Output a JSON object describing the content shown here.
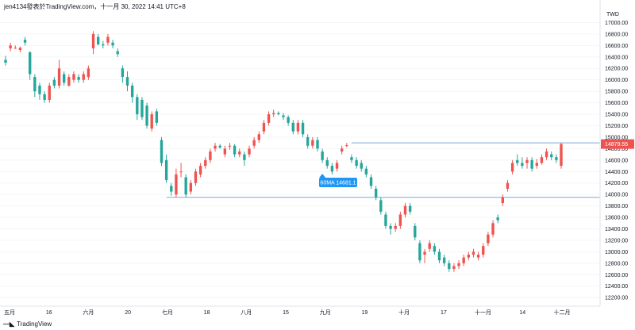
{
  "header": {
    "title": "jen4134發表於TradingView.com，十一月 30, 2022 14:41 UTC+8"
  },
  "footer": {
    "brand": "TradingView",
    "logo_icon": "tradingview-logo-icon"
  },
  "colors": {
    "up": "#ef5350",
    "down": "#26a69a",
    "hline": "#7fa9d6",
    "label_bg": "#2196f3",
    "last_price_bg": "#ef5350"
  },
  "chart_data": {
    "type": "candlestick",
    "currency": "TWD",
    "ylim": [
      12050,
      17200
    ],
    "y_ticks": [
      12200,
      12400,
      12600,
      12800,
      13000,
      13200,
      13400,
      13600,
      13800,
      14000,
      14200,
      14400,
      14600,
      14800,
      15000,
      15200,
      15400,
      15600,
      15800,
      16000,
      16200,
      16400,
      16600,
      16800,
      17000
    ],
    "x_ticks": [
      "五月",
      "16",
      "六月",
      "20",
      "七月",
      "18",
      "八月",
      "15",
      "九月",
      "19",
      "十月",
      "17",
      "十一月",
      "14",
      "十二月"
    ],
    "horizontal_lines": [
      14900,
      13950
    ],
    "annotation": {
      "text": "60MA 14681.1",
      "value": 14681.1
    },
    "last_price": {
      "text": "14879.55",
      "value": 14879.55
    },
    "candles": [
      {
        "o": 16350,
        "h": 16420,
        "l": 16250,
        "c": 16300
      },
      {
        "o": 16550,
        "h": 16650,
        "l": 16500,
        "c": 16600
      },
      {
        "o": 16560,
        "h": 16600,
        "l": 16540,
        "c": 16560
      },
      {
        "o": 16520,
        "h": 16580,
        "l": 16480,
        "c": 16560
      },
      {
        "o": 16700,
        "h": 16750,
        "l": 16600,
        "c": 16650
      },
      {
        "o": 16480,
        "h": 16500,
        "l": 16000,
        "c": 16100
      },
      {
        "o": 16050,
        "h": 16100,
        "l": 15700,
        "c": 15800
      },
      {
        "o": 15900,
        "h": 15950,
        "l": 15650,
        "c": 15750
      },
      {
        "o": 15750,
        "h": 15800,
        "l": 15600,
        "c": 15650
      },
      {
        "o": 15650,
        "h": 15950,
        "l": 15600,
        "c": 15900
      },
      {
        "o": 16000,
        "h": 16050,
        "l": 15850,
        "c": 15900
      },
      {
        "o": 15900,
        "h": 16350,
        "l": 15850,
        "c": 16200
      },
      {
        "o": 16100,
        "h": 16150,
        "l": 15900,
        "c": 15950
      },
      {
        "o": 15900,
        "h": 16100,
        "l": 15880,
        "c": 16050
      },
      {
        "o": 16000,
        "h": 16150,
        "l": 15950,
        "c": 16100
      },
      {
        "o": 16050,
        "h": 16100,
        "l": 15950,
        "c": 16000
      },
      {
        "o": 16000,
        "h": 16150,
        "l": 15950,
        "c": 16100
      },
      {
        "o": 16050,
        "h": 16250,
        "l": 16000,
        "c": 16200
      },
      {
        "o": 16550,
        "h": 16850,
        "l": 16450,
        "c": 16800
      },
      {
        "o": 16750,
        "h": 16800,
        "l": 16600,
        "c": 16620
      },
      {
        "o": 16620,
        "h": 16680,
        "l": 16550,
        "c": 16600
      },
      {
        "o": 16650,
        "h": 16800,
        "l": 16600,
        "c": 16750
      },
      {
        "o": 16650,
        "h": 16700,
        "l": 16550,
        "c": 16600
      },
      {
        "o": 16500,
        "h": 16550,
        "l": 16400,
        "c": 16450
      },
      {
        "o": 16200,
        "h": 16250,
        "l": 15950,
        "c": 16050
      },
      {
        "o": 16050,
        "h": 16150,
        "l": 15800,
        "c": 15900
      },
      {
        "o": 15900,
        "h": 15950,
        "l": 15600,
        "c": 15700
      },
      {
        "o": 15700,
        "h": 15750,
        "l": 15300,
        "c": 15400
      },
      {
        "o": 15650,
        "h": 15700,
        "l": 15300,
        "c": 15350
      },
      {
        "o": 15550,
        "h": 15600,
        "l": 15150,
        "c": 15200
      },
      {
        "o": 15150,
        "h": 15450,
        "l": 15100,
        "c": 15400
      },
      {
        "o": 15450,
        "h": 15500,
        "l": 15200,
        "c": 15250
      },
      {
        "o": 14950,
        "h": 15000,
        "l": 14500,
        "c": 14550
      },
      {
        "o": 14600,
        "h": 14700,
        "l": 14200,
        "c": 14250
      },
      {
        "o": 14150,
        "h": 14200,
        "l": 13980,
        "c": 14050
      },
      {
        "o": 14000,
        "h": 14450,
        "l": 13950,
        "c": 14350
      },
      {
        "o": 14400,
        "h": 14550,
        "l": 14300,
        "c": 14400
      },
      {
        "o": 14300,
        "h": 14350,
        "l": 13950,
        "c": 14000
      },
      {
        "o": 14050,
        "h": 14250,
        "l": 14000,
        "c": 14200
      },
      {
        "o": 14200,
        "h": 14450,
        "l": 14150,
        "c": 14400
      },
      {
        "o": 14350,
        "h": 14550,
        "l": 14300,
        "c": 14500
      },
      {
        "o": 14500,
        "h": 14650,
        "l": 14450,
        "c": 14600
      },
      {
        "o": 14600,
        "h": 14800,
        "l": 14550,
        "c": 14750
      },
      {
        "o": 14800,
        "h": 14900,
        "l": 14750,
        "c": 14850
      },
      {
        "o": 14850,
        "h": 14880,
        "l": 14800,
        "c": 14820
      },
      {
        "o": 14700,
        "h": 14850,
        "l": 14650,
        "c": 14800
      },
      {
        "o": 14850,
        "h": 14900,
        "l": 14780,
        "c": 14850
      },
      {
        "o": 14850,
        "h": 14880,
        "l": 14650,
        "c": 14700
      },
      {
        "o": 14700,
        "h": 14800,
        "l": 14650,
        "c": 14750
      },
      {
        "o": 14700,
        "h": 14750,
        "l": 14500,
        "c": 14600
      },
      {
        "o": 14700,
        "h": 14850,
        "l": 14650,
        "c": 14800
      },
      {
        "o": 14850,
        "h": 15000,
        "l": 14800,
        "c": 14950
      },
      {
        "o": 14950,
        "h": 15100,
        "l": 14900,
        "c": 15050
      },
      {
        "o": 15100,
        "h": 15300,
        "l": 15050,
        "c": 15250
      },
      {
        "o": 15250,
        "h": 15450,
        "l": 15200,
        "c": 15400
      },
      {
        "o": 15400,
        "h": 15480,
        "l": 15350,
        "c": 15420
      },
      {
        "o": 15420,
        "h": 15450,
        "l": 15380,
        "c": 15400
      },
      {
        "o": 15380,
        "h": 15420,
        "l": 15300,
        "c": 15350
      },
      {
        "o": 15350,
        "h": 15380,
        "l": 15200,
        "c": 15250
      },
      {
        "o": 15250,
        "h": 15300,
        "l": 15050,
        "c": 15100
      },
      {
        "o": 15100,
        "h": 15300,
        "l": 15050,
        "c": 15250
      },
      {
        "o": 15250,
        "h": 15300,
        "l": 15000,
        "c": 15050
      },
      {
        "o": 15000,
        "h": 15050,
        "l": 14800,
        "c": 14850
      },
      {
        "o": 14850,
        "h": 15000,
        "l": 14800,
        "c": 14950
      },
      {
        "o": 14950,
        "h": 15000,
        "l": 14750,
        "c": 14800
      },
      {
        "o": 14750,
        "h": 14800,
        "l": 14550,
        "c": 14600
      },
      {
        "o": 14600,
        "h": 14650,
        "l": 14450,
        "c": 14500
      },
      {
        "o": 14500,
        "h": 14550,
        "l": 14350,
        "c": 14400
      },
      {
        "o": 14450,
        "h": 14600,
        "l": 14400,
        "c": 14550
      },
      {
        "o": 14750,
        "h": 14850,
        "l": 14700,
        "c": 14800
      },
      {
        "o": 14850,
        "h": 14900,
        "l": 14820,
        "c": 14860
      },
      {
        "o": 14650,
        "h": 14700,
        "l": 14550,
        "c": 14600
      },
      {
        "o": 14600,
        "h": 14650,
        "l": 14450,
        "c": 14500
      },
      {
        "o": 14550,
        "h": 14600,
        "l": 14400,
        "c": 14450
      },
      {
        "o": 14450,
        "h": 14500,
        "l": 14300,
        "c": 14350
      },
      {
        "o": 14300,
        "h": 14350,
        "l": 14100,
        "c": 14150
      },
      {
        "o": 14100,
        "h": 14150,
        "l": 13900,
        "c": 13950
      },
      {
        "o": 13900,
        "h": 13950,
        "l": 13650,
        "c": 13700
      },
      {
        "o": 13650,
        "h": 13700,
        "l": 13400,
        "c": 13450
      },
      {
        "o": 13450,
        "h": 13500,
        "l": 13300,
        "c": 13400
      },
      {
        "o": 13400,
        "h": 13500,
        "l": 13350,
        "c": 13450
      },
      {
        "o": 13450,
        "h": 13700,
        "l": 13400,
        "c": 13650
      },
      {
        "o": 13650,
        "h": 13850,
        "l": 13600,
        "c": 13800
      },
      {
        "o": 13800,
        "h": 13850,
        "l": 13650,
        "c": 13700
      },
      {
        "o": 13450,
        "h": 13500,
        "l": 13200,
        "c": 13250
      },
      {
        "o": 13150,
        "h": 13200,
        "l": 12800,
        "c": 12850
      },
      {
        "o": 12950,
        "h": 13050,
        "l": 12800,
        "c": 13000
      },
      {
        "o": 13050,
        "h": 13200,
        "l": 13000,
        "c": 13150
      },
      {
        "o": 13100,
        "h": 13150,
        "l": 12950,
        "c": 13000
      },
      {
        "o": 13000,
        "h": 13050,
        "l": 12800,
        "c": 12850
      },
      {
        "o": 12900,
        "h": 12950,
        "l": 12750,
        "c": 12800
      },
      {
        "o": 12800,
        "h": 12850,
        "l": 12650,
        "c": 12700
      },
      {
        "o": 12700,
        "h": 12800,
        "l": 12650,
        "c": 12750
      },
      {
        "o": 12750,
        "h": 12850,
        "l": 12700,
        "c": 12800
      },
      {
        "o": 12800,
        "h": 12950,
        "l": 12750,
        "c": 12900
      },
      {
        "o": 12900,
        "h": 13000,
        "l": 12850,
        "c": 12950
      },
      {
        "o": 12950,
        "h": 13050,
        "l": 12900,
        "c": 13000
      },
      {
        "o": 12900,
        "h": 13000,
        "l": 12850,
        "c": 12950
      },
      {
        "o": 12950,
        "h": 13150,
        "l": 12900,
        "c": 13100
      },
      {
        "o": 13150,
        "h": 13350,
        "l": 13100,
        "c": 13300
      },
      {
        "o": 13300,
        "h": 13550,
        "l": 13250,
        "c": 13500
      },
      {
        "o": 13600,
        "h": 13650,
        "l": 13500,
        "c": 13550
      },
      {
        "o": 13850,
        "h": 14000,
        "l": 13800,
        "c": 13950
      },
      {
        "o": 14100,
        "h": 14250,
        "l": 14050,
        "c": 14200
      },
      {
        "o": 14400,
        "h": 14600,
        "l": 14350,
        "c": 14550
      },
      {
        "o": 14600,
        "h": 14700,
        "l": 14500,
        "c": 14550
      },
      {
        "o": 14550,
        "h": 14650,
        "l": 14450,
        "c": 14500
      },
      {
        "o": 14550,
        "h": 14650,
        "l": 14450,
        "c": 14600
      },
      {
        "o": 14600,
        "h": 14650,
        "l": 14400,
        "c": 14450
      },
      {
        "o": 14500,
        "h": 14620,
        "l": 14450,
        "c": 14550
      },
      {
        "o": 14550,
        "h": 14700,
        "l": 14520,
        "c": 14650
      },
      {
        "o": 14650,
        "h": 14800,
        "l": 14600,
        "c": 14750
      },
      {
        "o": 14700,
        "h": 14750,
        "l": 14600,
        "c": 14650
      },
      {
        "o": 14650,
        "h": 14700,
        "l": 14550,
        "c": 14600
      },
      {
        "o": 14500,
        "h": 14900,
        "l": 14450,
        "c": 14880
      }
    ]
  }
}
